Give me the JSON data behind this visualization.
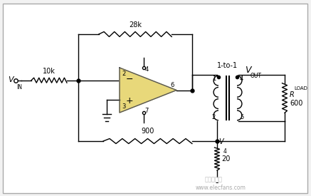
{
  "bg_color": "#f2f2f2",
  "border_color": "#aaaaaa",
  "line_color": "#000000",
  "opamp_fill": "#e8d87a",
  "opamp_border": "#555555",
  "vin_label": "V",
  "vin_sub": "IN",
  "vout_label": "V",
  "vout_sub": "OUT",
  "v4_label": "V",
  "v4_sub": "4",
  "r_10k": "10k",
  "r_28k": "28k",
  "r_900": "900",
  "r_20": "20",
  "rload_label": "R",
  "rload_sub": "LOAD",
  "rload_val": "600",
  "transformer_label": "1-to-1",
  "minus_label": "-",
  "plus_label": "+",
  "watermark": "www.elecfans.com",
  "watermark2": "电子发烧友"
}
